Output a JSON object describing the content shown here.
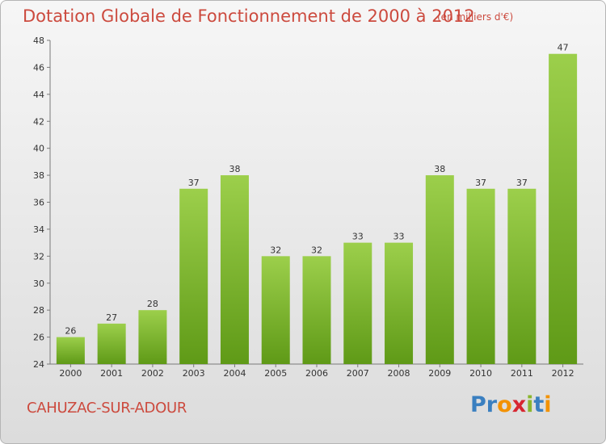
{
  "title": "Dotation Globale de Fonctionnement de 2000 à 2012",
  "subtitle": "(en milliers d'€)",
  "city": "CAHUZAC-SUR-ADOUR",
  "brand": {
    "letters": [
      "P",
      "r",
      "o",
      "x",
      "i",
      "t",
      "i"
    ],
    "colors": [
      "#3a7fc0",
      "#3a7fc0",
      "#f39200",
      "#d72631",
      "#8ab62e",
      "#3a7fc0",
      "#f39200"
    ]
  },
  "colors": {
    "bar_top": "#9ccf4b",
    "bar_bottom": "#5f9a17",
    "title": "#cc4a3e"
  },
  "chart_data": {
    "type": "bar",
    "categories": [
      "2000",
      "2001",
      "2002",
      "2003",
      "2004",
      "2005",
      "2006",
      "2007",
      "2008",
      "2009",
      "2010",
      "2011",
      "2012"
    ],
    "values": [
      26,
      27,
      28,
      37,
      38,
      32,
      32,
      33,
      33,
      38,
      37,
      37,
      47
    ],
    "ylim": [
      24,
      48
    ],
    "yticks": [
      24,
      26,
      28,
      30,
      32,
      34,
      36,
      38,
      40,
      42,
      44,
      46,
      48
    ],
    "grid": false,
    "data_labels": true
  }
}
